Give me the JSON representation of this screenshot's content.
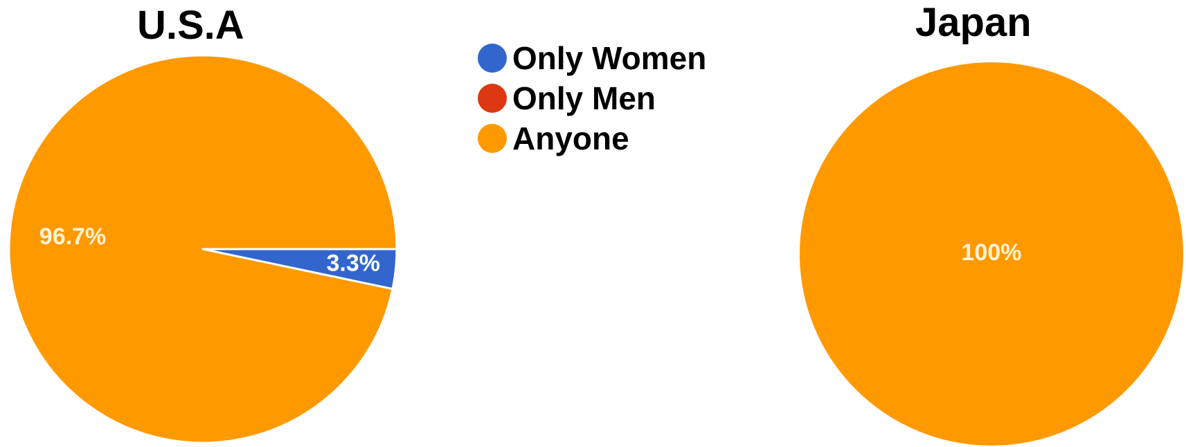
{
  "chart_data": [
    {
      "type": "pie",
      "title": "U.S.A",
      "categories": [
        "Only Women",
        "Only Men",
        "Anyone"
      ],
      "values": [
        3.3,
        0,
        96.7
      ],
      "labels": [
        "3.3%",
        "",
        "96.7%"
      ]
    },
    {
      "type": "pie",
      "title": "Japan",
      "categories": [
        "Only Women",
        "Only Men",
        "Anyone"
      ],
      "values": [
        0,
        0,
        100
      ],
      "labels": [
        "",
        "",
        "100%"
      ]
    }
  ],
  "legend": {
    "placement": "top-center",
    "items": [
      {
        "label": "Only Women",
        "color": "#3366cc"
      },
      {
        "label": "Only Men",
        "color": "#dc3912"
      },
      {
        "label": "Anyone",
        "color": "#ff9900"
      }
    ]
  }
}
